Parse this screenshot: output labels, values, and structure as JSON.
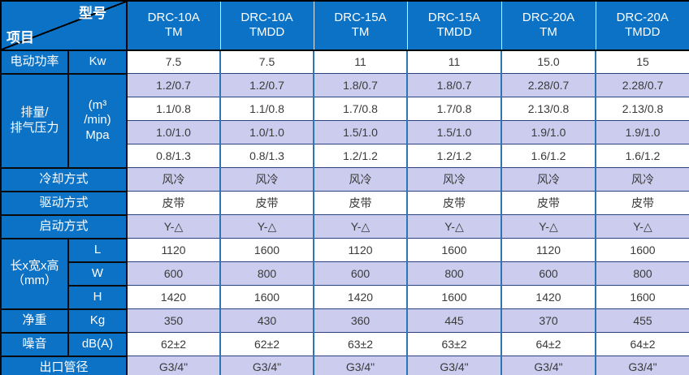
{
  "corner": {
    "model_label": "型号",
    "item_label": "项目"
  },
  "columns": [
    "DRC-10A\nTM",
    "DRC-10A\nTMDD",
    "DRC-15A\nTM",
    "DRC-15A\nTMDD",
    "DRC-20A\nTM",
    "DRC-20A\nTMDD"
  ],
  "rows": [
    {
      "cells": [
        {
          "t": "电动功率",
          "k": "label"
        },
        {
          "t": "Kw",
          "k": "unit"
        }
      ],
      "values": [
        "7.5",
        "7.5",
        "11",
        "11",
        "15.0",
        "15"
      ]
    },
    {
      "cells": [
        {
          "t": "排量/\n排气压力",
          "k": "label",
          "r": 4
        },
        {
          "t": "(m³\n/min)\nMpa",
          "k": "unit",
          "r": 4
        }
      ],
      "values": [
        "1.2/0.7",
        "1.2/0.7",
        "1.8/0.7",
        "1.8/0.7",
        "2.28/0.7",
        "2.28/0.7"
      ]
    },
    {
      "cells": [],
      "values": [
        "1.1/0.8",
        "1.1/0.8",
        "1.7/0.8",
        "1.7/0.8",
        "2.13/0.8",
        "2.13/0.8"
      ]
    },
    {
      "cells": [],
      "values": [
        "1.0/1.0",
        "1.0/1.0",
        "1.5/1.0",
        "1.5/1.0",
        "1.9/1.0",
        "1.9/1.0"
      ]
    },
    {
      "cells": [],
      "values": [
        "0.8/1.3",
        "0.8/1.3",
        "1.2/1.2",
        "1.2/1.2",
        "1.6/1.2",
        "1.6/1.2"
      ]
    },
    {
      "cells": [
        {
          "t": "冷却方式",
          "k": "label",
          "c": 2
        }
      ],
      "values": [
        "风冷",
        "风冷",
        "风冷",
        "风冷",
        "风冷",
        "风冷"
      ]
    },
    {
      "cells": [
        {
          "t": "驱动方式",
          "k": "label",
          "c": 2
        }
      ],
      "values": [
        "皮带",
        "皮带",
        "皮带",
        "皮带",
        "皮带",
        "皮带"
      ]
    },
    {
      "cells": [
        {
          "t": "启动方式",
          "k": "label",
          "c": 2
        }
      ],
      "values": [
        "Y-△",
        "Y-△",
        "Y-△",
        "Y-△",
        "Y-△",
        "Y-△"
      ]
    },
    {
      "cells": [
        {
          "t": "长x宽x高\n（mm）",
          "k": "label",
          "r": 3
        },
        {
          "t": "L",
          "k": "unit"
        }
      ],
      "values": [
        "1120",
        "1600",
        "1120",
        "1600",
        "1120",
        "1600"
      ]
    },
    {
      "cells": [
        {
          "t": "W",
          "k": "unit"
        }
      ],
      "values": [
        "600",
        "800",
        "600",
        "800",
        "600",
        "800"
      ]
    },
    {
      "cells": [
        {
          "t": "H",
          "k": "unit"
        }
      ],
      "values": [
        "1420",
        "1600",
        "1420",
        "1600",
        "1420",
        "1600"
      ]
    },
    {
      "cells": [
        {
          "t": "净重",
          "k": "label"
        },
        {
          "t": "Kg",
          "k": "unit"
        }
      ],
      "values": [
        "350",
        "430",
        "360",
        "445",
        "370",
        "455"
      ]
    },
    {
      "cells": [
        {
          "t": "噪音",
          "k": "label"
        },
        {
          "t": "dB(A)",
          "k": "unit"
        }
      ],
      "values": [
        "62±2",
        "62±2",
        "63±2",
        "63±2",
        "64±2",
        "64±2"
      ]
    },
    {
      "cells": [
        {
          "t": "出口管径",
          "k": "label",
          "c": 2
        }
      ],
      "values": [
        "G3/4\"",
        "G3/4\"",
        "G3/4\"",
        "G3/4\"",
        "G3/4\"",
        "G3/4\""
      ]
    }
  ],
  "colors": {
    "header_blue": "#0c72c6",
    "header_text": "#ffffff",
    "lavender": "#ccccee",
    "row_white": "#ffffff",
    "grid_vertical": "#2e75b6",
    "grid_horizontal": "#27417c",
    "outer_border": "#000000",
    "data_text": "#3a3a3a"
  }
}
